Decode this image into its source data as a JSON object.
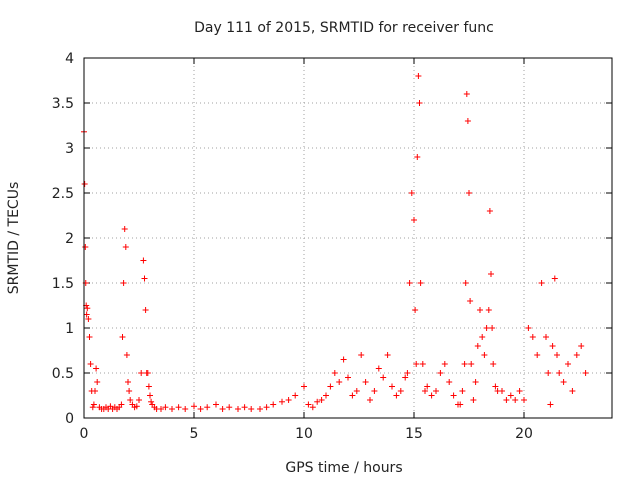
{
  "chart_data": {
    "type": "scatter",
    "title": "Day 111 of 2015, SRMTID for receiver func",
    "xlabel": "GPS time / hours",
    "ylabel": "SRMTID / TECUs",
    "xlim": [
      0,
      24
    ],
    "ylim": [
      0,
      4
    ],
    "xticks": [
      0,
      5,
      10,
      15,
      20
    ],
    "yticks": [
      0,
      0.5,
      1,
      1.5,
      2,
      2.5,
      3,
      3.5,
      4
    ],
    "xtick_labels": [
      "0",
      "5",
      "10",
      "15",
      "20"
    ],
    "ytick_labels": [
      "0",
      "0.5",
      "1",
      "1.5",
      "2",
      "2.5",
      "3",
      "3.5",
      "4"
    ],
    "grid": true,
    "marker": "+",
    "color": "#ff0000",
    "series": [
      {
        "name": "SRMTID",
        "x": [
          0.0,
          0.03,
          0.06,
          0.08,
          0.1,
          0.12,
          0.15,
          0.2,
          0.25,
          0.3,
          0.35,
          0.4,
          0.45,
          0.5,
          0.55,
          0.6,
          0.7,
          0.8,
          0.9,
          1.0,
          1.1,
          1.2,
          1.3,
          1.4,
          1.5,
          1.6,
          1.7,
          1.75,
          1.8,
          1.85,
          1.9,
          1.95,
          2.0,
          2.05,
          2.1,
          2.2,
          2.3,
          2.4,
          2.5,
          2.6,
          2.7,
          2.75,
          2.8,
          2.85,
          2.9,
          2.95,
          3.0,
          3.05,
          3.1,
          3.2,
          3.3,
          3.5,
          3.7,
          4.0,
          4.3,
          4.6,
          5.0,
          5.3,
          5.6,
          6.0,
          6.3,
          6.6,
          7.0,
          7.3,
          7.6,
          8.0,
          8.3,
          8.6,
          9.0,
          9.3,
          9.6,
          10.0,
          10.2,
          10.4,
          10.6,
          10.8,
          11.0,
          11.2,
          11.4,
          11.6,
          11.8,
          12.0,
          12.2,
          12.4,
          12.6,
          12.8,
          13.0,
          13.2,
          13.4,
          13.6,
          13.8,
          14.0,
          14.2,
          14.4,
          14.6,
          14.7,
          14.8,
          14.9,
          15.0,
          15.05,
          15.1,
          15.15,
          15.2,
          15.25,
          15.3,
          15.4,
          15.5,
          15.6,
          15.8,
          16.0,
          16.2,
          16.4,
          16.6,
          16.8,
          17.0,
          17.1,
          17.2,
          17.3,
          17.35,
          17.4,
          17.45,
          17.5,
          17.55,
          17.6,
          17.7,
          17.8,
          17.9,
          18.0,
          18.1,
          18.2,
          18.3,
          18.4,
          18.45,
          18.5,
          18.55,
          18.6,
          18.7,
          18.8,
          19.0,
          19.2,
          19.4,
          19.6,
          19.8,
          20.0,
          20.2,
          20.4,
          20.6,
          20.8,
          21.0,
          21.1,
          21.2,
          21.3,
          21.4,
          21.5,
          21.6,
          21.8,
          22.0,
          22.2,
          22.4,
          22.6,
          22.8
        ],
        "y": [
          3.18,
          2.6,
          1.9,
          1.5,
          1.25,
          1.15,
          1.22,
          1.1,
          0.9,
          0.6,
          0.3,
          0.12,
          0.15,
          0.3,
          0.55,
          0.4,
          0.12,
          0.1,
          0.1,
          0.12,
          0.1,
          0.13,
          0.1,
          0.12,
          0.1,
          0.12,
          0.15,
          0.9,
          1.5,
          2.1,
          1.9,
          0.7,
          0.4,
          0.3,
          0.2,
          0.15,
          0.12,
          0.13,
          0.2,
          0.5,
          1.75,
          1.55,
          1.2,
          0.5,
          0.5,
          0.35,
          0.25,
          0.18,
          0.15,
          0.12,
          0.1,
          0.1,
          0.12,
          0.1,
          0.12,
          0.1,
          0.13,
          0.1,
          0.12,
          0.15,
          0.1,
          0.12,
          0.1,
          0.12,
          0.1,
          0.1,
          0.12,
          0.15,
          0.18,
          0.2,
          0.25,
          0.35,
          0.15,
          0.12,
          0.18,
          0.2,
          0.25,
          0.35,
          0.5,
          0.4,
          0.65,
          0.45,
          0.25,
          0.3,
          0.7,
          0.4,
          0.2,
          0.3,
          0.55,
          0.45,
          0.7,
          0.35,
          0.25,
          0.3,
          0.45,
          0.5,
          1.5,
          2.5,
          2.2,
          1.2,
          0.6,
          2.9,
          3.8,
          3.5,
          1.5,
          0.6,
          0.3,
          0.35,
          0.25,
          0.3,
          0.5,
          0.6,
          0.4,
          0.25,
          0.15,
          0.15,
          0.3,
          0.6,
          1.5,
          3.6,
          3.3,
          2.5,
          1.3,
          0.6,
          0.2,
          0.4,
          0.8,
          1.2,
          0.9,
          0.7,
          1.0,
          1.2,
          2.3,
          1.6,
          1.0,
          0.6,
          0.35,
          0.3,
          0.3,
          0.2,
          0.25,
          0.2,
          0.3,
          0.2,
          1.0,
          0.9,
          0.7,
          1.5,
          0.9,
          0.5,
          0.15,
          0.8,
          1.55,
          0.7,
          0.5,
          0.4,
          0.6,
          0.3,
          0.7,
          0.8,
          0.5
        ]
      }
    ]
  }
}
